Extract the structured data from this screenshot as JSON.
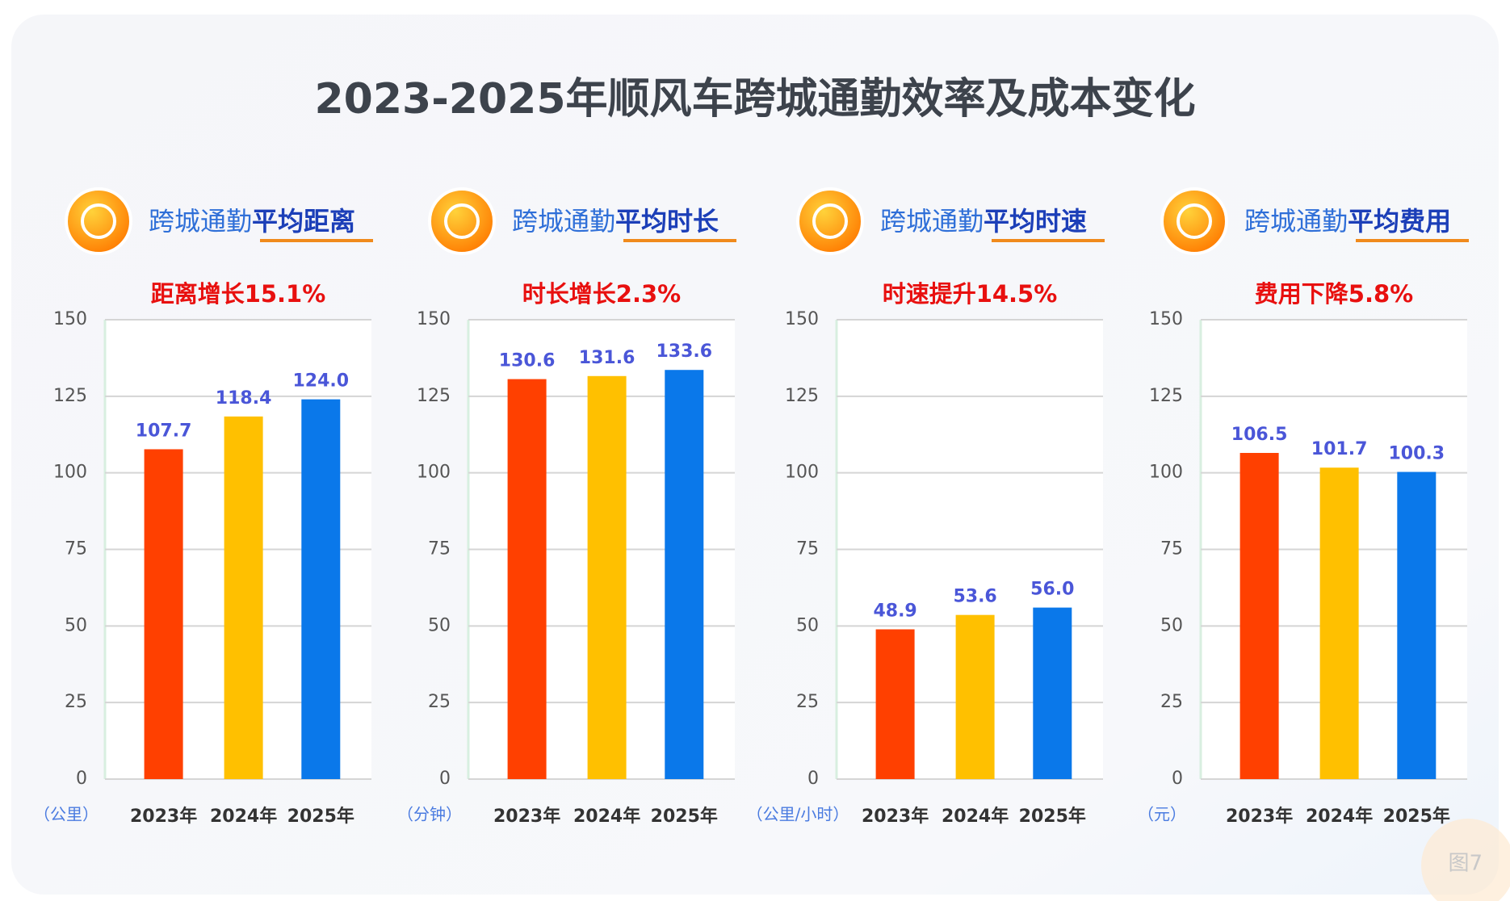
{
  "title": "2023-2025年顺风车跨城通勤效率及成本变化",
  "figure_label": "图7",
  "chart_data": [
    {
      "type": "bar",
      "title_lead": "跨城通勤",
      "title": "平均距离",
      "annotation": "距离增长15.1%",
      "y_label": "（公里）",
      "categories": [
        "2023年",
        "2024年",
        "2025年"
      ],
      "values": [
        107.7,
        118.4,
        124.0
      ],
      "value_labels": [
        "107.7",
        "118.4",
        "124.0"
      ],
      "colors": [
        "#ff4000",
        "#ffc000",
        "#0a78ea"
      ],
      "ylim": [
        0,
        150
      ],
      "yticks": [
        0,
        25,
        50,
        75,
        100,
        125,
        150
      ],
      "grid": true
    },
    {
      "type": "bar",
      "title_lead": "跨城通勤",
      "title": "平均时长",
      "annotation": "时长增长2.3%",
      "y_label": "（分钟）",
      "categories": [
        "2023年",
        "2024年",
        "2025年"
      ],
      "values": [
        130.6,
        131.6,
        133.6
      ],
      "value_labels": [
        "130.6",
        "131.6",
        "133.6"
      ],
      "colors": [
        "#ff4000",
        "#ffc000",
        "#0a78ea"
      ],
      "ylim": [
        0,
        150
      ],
      "yticks": [
        0,
        25,
        50,
        75,
        100,
        125,
        150
      ],
      "grid": true
    },
    {
      "type": "bar",
      "title_lead": "跨城通勤",
      "title": "平均时速",
      "annotation": "时速提升14.5%",
      "y_label": "（公里/小时）",
      "categories": [
        "2023年",
        "2024年",
        "2025年"
      ],
      "values": [
        48.9,
        53.6,
        56.0
      ],
      "value_labels": [
        "48.9",
        "53.6",
        "56.0"
      ],
      "colors": [
        "#ff4000",
        "#ffc000",
        "#0a78ea"
      ],
      "ylim": [
        0,
        150
      ],
      "yticks": [
        0,
        25,
        50,
        75,
        100,
        125,
        150
      ],
      "grid": true
    },
    {
      "type": "bar",
      "title_lead": "跨城通勤",
      "title": "平均费用",
      "annotation": "费用下降5.8%",
      "y_label": "（元）",
      "categories": [
        "2023年",
        "2024年",
        "2025年"
      ],
      "values": [
        106.5,
        101.7,
        100.3
      ],
      "value_labels": [
        "106.5",
        "101.7",
        "100.3"
      ],
      "colors": [
        "#ff4000",
        "#ffc000",
        "#0a78ea"
      ],
      "ylim": [
        0,
        150
      ],
      "yticks": [
        0,
        25,
        50,
        75,
        100,
        125,
        150
      ],
      "grid": true
    }
  ]
}
